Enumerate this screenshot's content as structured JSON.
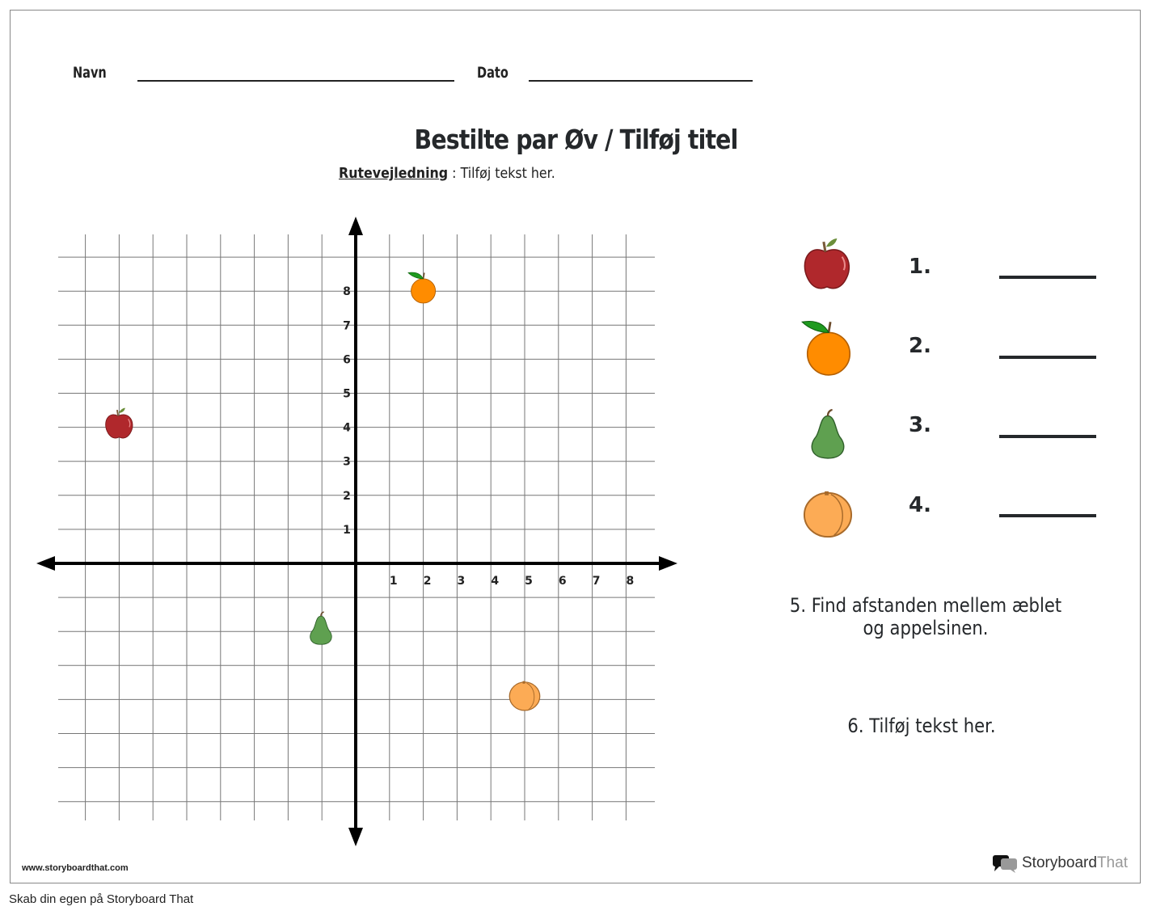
{
  "header": {
    "name_label": "Navn",
    "date_label": "Dato"
  },
  "title": "Bestilte par Øv / Tilføj titel",
  "instructions": {
    "label": "Rutevejledning",
    "separator": ":",
    "text": "Tilføj tekst her."
  },
  "chart_data": {
    "type": "scatter",
    "xlim": [
      -8,
      8
    ],
    "ylim": [
      -7,
      9
    ],
    "x_tick_labels": [
      "1",
      "2",
      "3",
      "4",
      "5",
      "6",
      "7",
      "8"
    ],
    "y_tick_labels": [
      "1",
      "2",
      "3",
      "4",
      "5",
      "6",
      "7",
      "8"
    ],
    "grid": true,
    "points": [
      {
        "icon": "apple",
        "x": -7,
        "y": 4
      },
      {
        "icon": "orange",
        "x": 2,
        "y": 8
      },
      {
        "icon": "pear",
        "x": -1,
        "y": -2
      },
      {
        "icon": "peach",
        "x": 5,
        "y": -4
      }
    ]
  },
  "questions": [
    {
      "number": "1.",
      "icon": "apple-icon"
    },
    {
      "number": "2.",
      "icon": "orange-icon"
    },
    {
      "number": "3.",
      "icon": "pear-icon"
    },
    {
      "number": "4.",
      "icon": "peach-icon"
    }
  ],
  "q5": "5. Find afstanden mellem æblet og appelsinen.",
  "q6": "6. Tilføj tekst her.",
  "footer": {
    "url": "www.storyboardthat.com",
    "brand_a": "Storyboard",
    "brand_b": "That",
    "caption": "Skab din egen på Storyboard That"
  },
  "colors": {
    "apple": "#b0282c",
    "orange": "#ff8c00",
    "pear": "#5fa050",
    "peach": "#fcab55",
    "ink": "#25282b"
  }
}
